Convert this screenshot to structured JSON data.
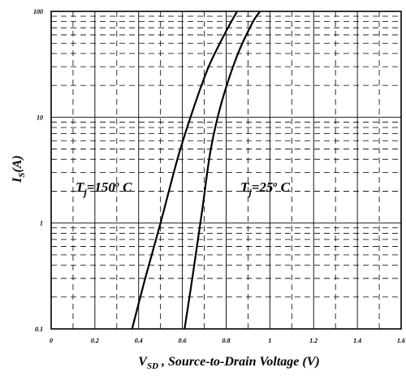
{
  "chart_data": {
    "type": "line",
    "x_axis": {
      "label_main": "V",
      "label_sub": "SD",
      "label_rest": " , Source-to-Drain Voltage (V)",
      "range": [
        0,
        1.6
      ],
      "ticks": [
        0,
        0.2,
        0.4,
        0.6,
        0.8,
        1.0,
        1.2,
        1.4,
        1.6
      ],
      "tick_labels": [
        "0",
        "0.2",
        "0.4",
        "0.6",
        "0.8",
        "1",
        "1.2",
        "1.4",
        "1.6"
      ],
      "minor_step": 0.1
    },
    "y_axis": {
      "label_main": "I",
      "label_sub": "S",
      "label_rest": "(A)",
      "scale": "log",
      "range": [
        0.1,
        100
      ],
      "ticks": [
        0.1,
        1,
        10,
        100
      ],
      "tick_labels": [
        "0.1",
        "1",
        "10",
        "100"
      ]
    },
    "grid": true,
    "series": [
      {
        "name_main": "T",
        "name_sub": "j",
        "name_rest": "=150",
        "name_sup": "o",
        "name_unit": " C",
        "x": [
          0.37,
          0.43,
          0.5,
          0.58,
          0.65,
          0.72,
          0.8,
          0.85
        ],
        "y": [
          0.1,
          0.3,
          1.0,
          4.2,
          12,
          30,
          65,
          100
        ]
      },
      {
        "name_main": "T",
        "name_sub": "j",
        "name_rest": "=25",
        "name_sup": "o",
        "name_unit": " C",
        "x": [
          0.61,
          0.65,
          0.69,
          0.73,
          0.78,
          0.85,
          0.92,
          0.955
        ],
        "y": [
          0.1,
          0.35,
          1.3,
          5.0,
          14,
          38,
          78,
          100
        ]
      }
    ]
  }
}
